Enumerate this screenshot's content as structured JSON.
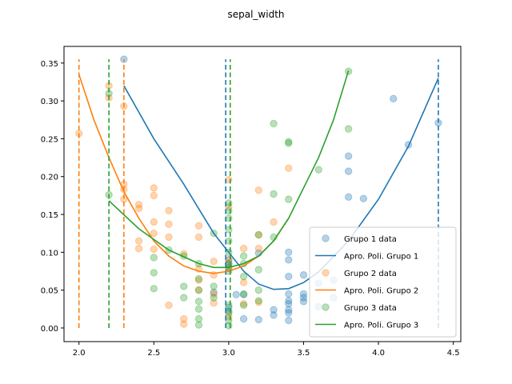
{
  "chart_data": {
    "type": "scatter",
    "title": "sepal_width",
    "xlabel": "",
    "ylabel": "",
    "xlim": [
      1.9,
      4.55
    ],
    "ylim": [
      -0.018,
      0.372
    ],
    "xticks": [
      2.0,
      2.5,
      3.0,
      3.5,
      4.0,
      4.5
    ],
    "xtick_labels": [
      "2.0",
      "2.5",
      "3.0",
      "3.5",
      "4.0",
      "4.5"
    ],
    "yticks": [
      0.0,
      0.05,
      0.1,
      0.15,
      0.2,
      0.25,
      0.3,
      0.35
    ],
    "ytick_labels": [
      "0.00",
      "0.05",
      "0.10",
      "0.15",
      "0.20",
      "0.25",
      "0.30",
      "0.35"
    ],
    "grid": false,
    "legend_position": "bottom-right",
    "colors": {
      "g1": "#1f77b4",
      "g2": "#ff7f0e",
      "g3": "#2ca02c"
    },
    "series": [
      {
        "name": "Grupo 1 data",
        "kind": "scatter",
        "color_key": "g1",
        "points": [
          [
            2.3,
            0.355
          ],
          [
            2.9,
            0.047
          ],
          [
            3.0,
            0.09
          ],
          [
            3.0,
            0.085
          ],
          [
            3.0,
            0.08
          ],
          [
            3.0,
            0.027
          ],
          [
            3.0,
            0.022
          ],
          [
            3.05,
            0.044
          ],
          [
            3.1,
            0.044
          ],
          [
            3.1,
            0.012
          ],
          [
            3.2,
            0.011
          ],
          [
            3.2,
            0.099
          ],
          [
            3.3,
            0.017
          ],
          [
            3.3,
            0.024
          ],
          [
            3.4,
            0.024
          ],
          [
            3.4,
            0.036
          ],
          [
            3.4,
            0.045
          ],
          [
            3.4,
            0.032
          ],
          [
            3.4,
            0.02
          ],
          [
            3.4,
            0.01
          ],
          [
            3.4,
            0.068
          ],
          [
            3.4,
            0.09
          ],
          [
            3.4,
            0.1
          ],
          [
            3.5,
            0.04
          ],
          [
            3.5,
            0.07
          ],
          [
            3.5,
            0.035
          ],
          [
            3.5,
            0.045
          ],
          [
            3.6,
            0.028
          ],
          [
            3.6,
            0.059
          ],
          [
            3.7,
            0.063
          ],
          [
            3.7,
            0.04
          ],
          [
            3.8,
            0.173
          ],
          [
            3.8,
            0.207
          ],
          [
            3.8,
            0.227
          ],
          [
            3.9,
            0.171
          ],
          [
            4.1,
            0.303
          ],
          [
            4.2,
            0.242
          ],
          [
            4.4,
            0.271
          ]
        ]
      },
      {
        "name": "Apro. Poli. Grupo 1",
        "kind": "line",
        "color_key": "g1",
        "curve": [
          [
            2.3,
            0.32
          ],
          [
            2.5,
            0.25
          ],
          [
            2.7,
            0.19
          ],
          [
            2.9,
            0.125
          ],
          [
            3.1,
            0.075
          ],
          [
            3.2,
            0.058
          ],
          [
            3.3,
            0.051
          ],
          [
            3.4,
            0.052
          ],
          [
            3.5,
            0.06
          ],
          [
            3.6,
            0.074
          ],
          [
            3.8,
            0.115
          ],
          [
            4.0,
            0.17
          ],
          [
            4.2,
            0.24
          ],
          [
            4.4,
            0.33
          ]
        ],
        "vlines": [
          2.98,
          4.4
        ],
        "vline_top": 0.355
      },
      {
        "name": "Grupo 2 data",
        "kind": "scatter",
        "color_key": "g2",
        "points": [
          [
            2.0,
            0.257
          ],
          [
            2.2,
            0.32
          ],
          [
            2.2,
            0.304
          ],
          [
            2.3,
            0.293
          ],
          [
            2.3,
            0.19
          ],
          [
            2.3,
            0.183
          ],
          [
            2.3,
            0.17
          ],
          [
            2.4,
            0.163
          ],
          [
            2.4,
            0.158
          ],
          [
            2.4,
            0.105
          ],
          [
            2.4,
            0.115
          ],
          [
            2.5,
            0.185
          ],
          [
            2.5,
            0.175
          ],
          [
            2.5,
            0.14
          ],
          [
            2.5,
            0.125
          ],
          [
            2.5,
            0.104
          ],
          [
            2.6,
            0.155
          ],
          [
            2.6,
            0.137
          ],
          [
            2.6,
            0.12
          ],
          [
            2.6,
            0.03
          ],
          [
            2.7,
            0.098
          ],
          [
            2.7,
            0.012
          ],
          [
            2.7,
            0.005
          ],
          [
            2.8,
            0.135
          ],
          [
            2.8,
            0.12
          ],
          [
            2.8,
            0.078
          ],
          [
            2.8,
            0.063
          ],
          [
            2.8,
            0.05
          ],
          [
            2.9,
            0.088
          ],
          [
            2.9,
            0.07
          ],
          [
            2.9,
            0.045
          ],
          [
            2.9,
            0.033
          ],
          [
            3.0,
            0.196
          ],
          [
            3.0,
            0.16
          ],
          [
            3.0,
            0.09
          ],
          [
            3.0,
            0.08
          ],
          [
            3.0,
            0.015
          ],
          [
            3.1,
            0.105
          ],
          [
            3.1,
            0.06
          ],
          [
            3.1,
            0.032
          ],
          [
            3.2,
            0.182
          ],
          [
            3.2,
            0.123
          ],
          [
            3.2,
            0.105
          ],
          [
            3.2,
            0.034
          ],
          [
            3.3,
            0.14
          ],
          [
            3.4,
            0.211
          ]
        ]
      },
      {
        "name": "Apro. Poli. Grupo 2",
        "kind": "line",
        "color_key": "g2",
        "curve": [
          [
            2.0,
            0.335
          ],
          [
            2.1,
            0.275
          ],
          [
            2.2,
            0.225
          ],
          [
            2.3,
            0.18
          ],
          [
            2.4,
            0.145
          ],
          [
            2.5,
            0.115
          ],
          [
            2.6,
            0.095
          ],
          [
            2.7,
            0.082
          ],
          [
            2.8,
            0.075
          ],
          [
            2.9,
            0.072
          ],
          [
            3.0,
            0.075
          ],
          [
            3.1,
            0.082
          ],
          [
            3.2,
            0.095
          ],
          [
            3.3,
            0.115
          ],
          [
            3.4,
            0.145
          ]
        ],
        "vlines": [
          2.0,
          2.3
        ],
        "vline_top": 0.355
      },
      {
        "name": "Grupo 3 data",
        "kind": "scatter",
        "color_key": "g3",
        "points": [
          [
            2.2,
            0.176
          ],
          [
            2.2,
            0.31
          ],
          [
            2.5,
            0.093
          ],
          [
            2.5,
            0.073
          ],
          [
            2.5,
            0.052
          ],
          [
            2.6,
            0.103
          ],
          [
            2.7,
            0.055
          ],
          [
            2.7,
            0.04
          ],
          [
            2.7,
            0.095
          ],
          [
            2.8,
            0.085
          ],
          [
            2.8,
            0.065
          ],
          [
            2.8,
            0.05
          ],
          [
            2.8,
            0.035
          ],
          [
            2.8,
            0.025
          ],
          [
            2.8,
            0.012
          ],
          [
            2.8,
            0.004
          ],
          [
            2.9,
            0.125
          ],
          [
            2.9,
            0.055
          ],
          [
            2.9,
            0.04
          ],
          [
            3.0,
            0.165
          ],
          [
            3.0,
            0.155
          ],
          [
            3.0,
            0.145
          ],
          [
            3.0,
            0.13
          ],
          [
            3.0,
            0.115
          ],
          [
            3.0,
            0.1
          ],
          [
            3.0,
            0.085
          ],
          [
            3.0,
            0.075
          ],
          [
            3.0,
            0.03
          ],
          [
            3.0,
            0.02
          ],
          [
            3.0,
            0.01
          ],
          [
            3.0,
            0.003
          ],
          [
            3.1,
            0.095
          ],
          [
            3.1,
            0.085
          ],
          [
            3.1,
            0.068
          ],
          [
            3.1,
            0.045
          ],
          [
            3.1,
            0.03
          ],
          [
            3.2,
            0.123
          ],
          [
            3.2,
            0.077
          ],
          [
            3.2,
            0.05
          ],
          [
            3.2,
            0.036
          ],
          [
            3.3,
            0.27
          ],
          [
            3.3,
            0.177
          ],
          [
            3.3,
            0.12
          ],
          [
            3.4,
            0.246
          ],
          [
            3.4,
            0.244
          ],
          [
            3.4,
            0.17
          ],
          [
            3.6,
            0.209
          ],
          [
            3.8,
            0.339
          ],
          [
            3.8,
            0.263
          ]
        ]
      },
      {
        "name": "Apro. Poli. Grupo 3",
        "kind": "line",
        "color_key": "g3",
        "curve": [
          [
            2.2,
            0.168
          ],
          [
            2.4,
            0.131
          ],
          [
            2.6,
            0.103
          ],
          [
            2.8,
            0.085
          ],
          [
            2.9,
            0.08
          ],
          [
            3.0,
            0.08
          ],
          [
            3.1,
            0.085
          ],
          [
            3.2,
            0.095
          ],
          [
            3.3,
            0.115
          ],
          [
            3.4,
            0.145
          ],
          [
            3.5,
            0.185
          ],
          [
            3.6,
            0.225
          ],
          [
            3.7,
            0.275
          ],
          [
            3.8,
            0.34
          ]
        ],
        "vlines": [
          2.2,
          3.01
        ],
        "vline_top": 0.355
      }
    ]
  }
}
